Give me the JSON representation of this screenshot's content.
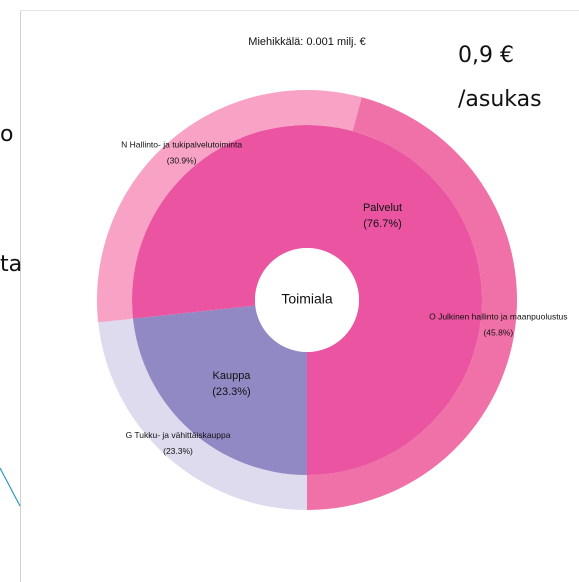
{
  "chart_data": {
    "type": "sunburst",
    "title": "Miehikkälä: 0.001 milj. €",
    "center_label": "Toimiala",
    "inner": {
      "categories": [
        "Kauppa",
        "Palvelut"
      ],
      "values": [
        23.3,
        76.7
      ],
      "value_labels": [
        "(23.3%)",
        "(76.7%)"
      ],
      "colors": [
        "#9189c4",
        "#ea54a1"
      ]
    },
    "outer": {
      "categories": [
        "G Tukku- ja vähittäiskauppa",
        "N Hallinto- ja tukipalvelutoiminta",
        "O Julkinen hallinto ja maanpuolustus"
      ],
      "values": [
        23.3,
        30.9,
        45.8
      ],
      "value_labels": [
        "(23.3%)",
        "(30.9%)",
        "(45.8%)"
      ],
      "colors": [
        "#dedbee",
        "#f8a2c6",
        "#f070a8"
      ]
    }
  },
  "overlay": {
    "per_capita_value": "0,9 €",
    "per_capita_unit": "/asukas",
    "left_fragments": [
      "o",
      "ta"
    ]
  }
}
